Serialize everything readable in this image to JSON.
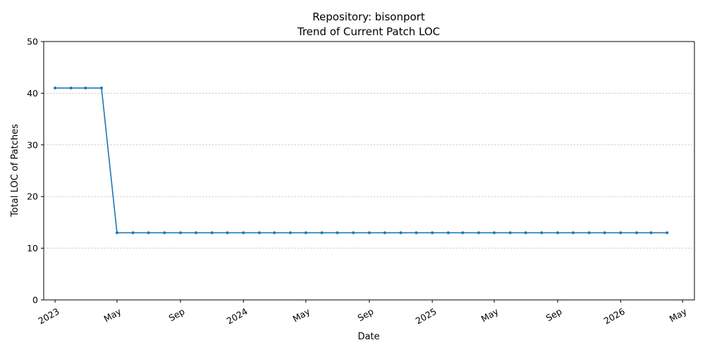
{
  "chart_data": {
    "type": "line",
    "title": "Repository: bisonport",
    "subtitle": "Trend of Current Patch LOC",
    "xlabel": "Date",
    "ylabel": "Total LOC of Patches",
    "ylim": [
      0,
      50
    ],
    "xlim": [
      "2022-12-10",
      "2026-05-24"
    ],
    "yticks": [
      0,
      10,
      20,
      30,
      40,
      50
    ],
    "xticks": [
      {
        "date": "2023-01-01",
        "label": "2023"
      },
      {
        "date": "2023-05-01",
        "label": "May"
      },
      {
        "date": "2023-09-01",
        "label": "Sep"
      },
      {
        "date": "2024-01-01",
        "label": "2024"
      },
      {
        "date": "2024-05-01",
        "label": "May"
      },
      {
        "date": "2024-09-01",
        "label": "Sep"
      },
      {
        "date": "2025-01-01",
        "label": "2025"
      },
      {
        "date": "2025-05-01",
        "label": "May"
      },
      {
        "date": "2025-09-01",
        "label": "Sep"
      },
      {
        "date": "2026-01-01",
        "label": "2026"
      },
      {
        "date": "2026-05-01",
        "label": "May"
      }
    ],
    "grid": "horizontal dashed",
    "line_color": "#1f77b4",
    "series": [
      {
        "x": [
          "2023-01-01",
          "2023-02-01",
          "2023-03-01",
          "2023-04-01",
          "2023-05-01",
          "2023-06-01",
          "2023-07-01",
          "2023-08-01",
          "2023-09-01",
          "2023-10-01",
          "2023-11-01",
          "2023-12-01",
          "2024-01-01",
          "2024-02-01",
          "2024-03-01",
          "2024-04-01",
          "2024-05-01",
          "2024-06-01",
          "2024-07-01",
          "2024-08-01",
          "2024-09-01",
          "2024-10-01",
          "2024-11-01",
          "2024-12-01",
          "2025-01-01",
          "2025-02-01",
          "2025-03-01",
          "2025-04-01",
          "2025-05-01",
          "2025-06-01",
          "2025-07-01",
          "2025-08-01",
          "2025-09-01",
          "2025-10-01",
          "2025-11-01",
          "2025-12-01",
          "2026-01-01",
          "2026-02-01",
          "2026-03-01",
          "2026-04-01"
        ],
        "values": [
          41,
          41,
          41,
          41,
          13,
          13,
          13,
          13,
          13,
          13,
          13,
          13,
          13,
          13,
          13,
          13,
          13,
          13,
          13,
          13,
          13,
          13,
          13,
          13,
          13,
          13,
          13,
          13,
          13,
          13,
          13,
          13,
          13,
          13,
          13,
          13,
          13,
          13,
          13,
          13
        ]
      }
    ]
  }
}
